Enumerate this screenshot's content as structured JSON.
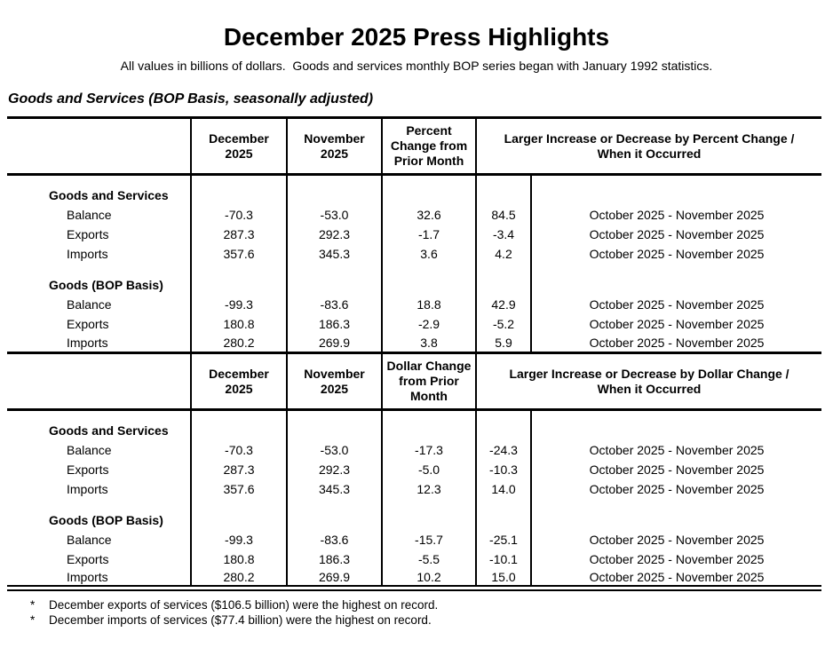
{
  "page": {
    "title": "December 2025 Press Highlights",
    "subtitle": "All values in billions of dollars.  Goods and services monthly BOP series began with January 1992 statistics.",
    "section_heading": "Goods and Services (BOP Basis, seasonally adjusted)"
  },
  "table1": {
    "headers": {
      "december": "December\n2025",
      "november": "November\n2025",
      "change": "Percent\nChange from\nPrior Month",
      "larger": "Larger Increase or Decrease by Percent Change /\nWhen it Occurred"
    },
    "group1": {
      "label": "Goods and Services",
      "rows": [
        {
          "label": "Balance",
          "december": "-70.3",
          "november": "-53.0",
          "change": "32.6",
          "larger": "84.5",
          "when": "October 2025 - November 2025"
        },
        {
          "label": "Exports",
          "december": "287.3",
          "november": "292.3",
          "change": "-1.7",
          "larger": "-3.4",
          "when": "October 2025 - November 2025"
        },
        {
          "label": "Imports",
          "december": "357.6",
          "november": "345.3",
          "change": "3.6",
          "larger": "4.2",
          "when": "October 2025 - November 2025"
        }
      ]
    },
    "group2": {
      "label": "Goods (BOP Basis)",
      "rows": [
        {
          "label": "Balance",
          "december": "-99.3",
          "november": "-83.6",
          "change": "18.8",
          "larger": "42.9",
          "when": "October 2025 - November 2025"
        },
        {
          "label": "Exports",
          "december": "180.8",
          "november": "186.3",
          "change": "-2.9",
          "larger": "-5.2",
          "when": "October 2025 - November 2025"
        },
        {
          "label": "Imports",
          "december": "280.2",
          "november": "269.9",
          "change": "3.8",
          "larger": "5.9",
          "when": "October 2025 - November 2025"
        }
      ]
    }
  },
  "table2": {
    "headers": {
      "december": "December\n2025",
      "november": "November\n2025",
      "change": "Dollar Change\nfrom Prior\nMonth",
      "larger": "Larger Increase or Decrease by Dollar Change /\nWhen it Occurred"
    },
    "group1": {
      "label": "Goods and Services",
      "rows": [
        {
          "label": "Balance",
          "december": "-70.3",
          "november": "-53.0",
          "change": "-17.3",
          "larger": "-24.3",
          "when": "October 2025 - November 2025"
        },
        {
          "label": "Exports",
          "december": "287.3",
          "november": "292.3",
          "change": "-5.0",
          "larger": "-10.3",
          "when": "October 2025 - November 2025"
        },
        {
          "label": "Imports",
          "december": "357.6",
          "november": "345.3",
          "change": "12.3",
          "larger": "14.0",
          "when": "October 2025 - November 2025"
        }
      ]
    },
    "group2": {
      "label": "Goods (BOP Basis)",
      "rows": [
        {
          "label": "Balance",
          "december": "-99.3",
          "november": "-83.6",
          "change": "-15.7",
          "larger": "-25.1",
          "when": "October 2025 - November 2025"
        },
        {
          "label": "Exports",
          "december": "180.8",
          "november": "186.3",
          "change": "-5.5",
          "larger": "-10.1",
          "when": "October 2025 - November 2025"
        },
        {
          "label": "Imports",
          "december": "280.2",
          "november": "269.9",
          "change": "10.2",
          "larger": "15.0",
          "when": "October 2025 - November 2025"
        }
      ]
    }
  },
  "footnotes": [
    {
      "marker": "*",
      "text": "December exports of services ($106.5 billion) were the highest on record."
    },
    {
      "marker": "*",
      "text": "December imports of services ($77.4 billion) were the highest on record."
    }
  ]
}
